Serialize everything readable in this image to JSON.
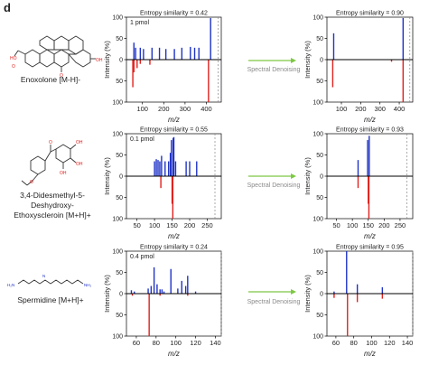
{
  "panel_letter": "d",
  "arrow_label": "Spectral Denoising",
  "y_axis_label": "Intensity (%)",
  "x_axis_label": "m/z",
  "colors": {
    "query": "#1f33c7",
    "reference": "#e0221e",
    "arrow": "#7dc843",
    "axis": "#000000",
    "zero": "#000000"
  },
  "rows": [
    {
      "compound": "Enoxolone [M-H]-",
      "structure_icon": "enoxolone-structure-icon",
      "amount": "1 pmol"
    },
    {
      "compound": "3,4-Didesmethyl-5-Deshydroxy-Ethoxyscleroin [M+H]+",
      "compound_lines": [
        "3,4-Didesmethyl-5-",
        "Deshydroxy-",
        "Ethoxyscleroin [M+H]+"
      ],
      "structure_icon": "didesmethyl-structure-icon",
      "amount": "0.1 pmol"
    },
    {
      "compound": "Spermidine [M+H]+",
      "structure_icon": "spermidine-structure-icon",
      "amount": "0.4 pmol"
    }
  ],
  "chart_data": [
    {
      "type": "bar",
      "id": "enoxolone-raw",
      "title": "Entropy similarity = 0.42",
      "annotation": "1 pmol",
      "xlabel": "m/z",
      "ylabel": "Intensity (%)",
      "xlim": [
        25,
        470
      ],
      "xticks": [
        100,
        200,
        300,
        400
      ],
      "ylim_top": [
        0,
        100
      ],
      "ylim_bottom": [
        0,
        100
      ],
      "yticks": [
        0,
        50,
        100
      ],
      "precursor_mz": 455,
      "series": [
        {
          "name": "query",
          "direction": "up",
          "points": [
            [
              60,
              40
            ],
            [
              68,
              28
            ],
            [
              90,
              28
            ],
            [
              105,
              25
            ],
            [
              145,
              28
            ],
            [
              180,
              28
            ],
            [
              210,
              25
            ],
            [
              250,
              25
            ],
            [
              285,
              28
            ],
            [
              325,
              30
            ],
            [
              345,
              28
            ],
            [
              365,
              28
            ],
            [
              420,
              98
            ]
          ]
        },
        {
          "name": "reference",
          "direction": "down",
          "points": [
            [
              55,
              65
            ],
            [
              60,
              30
            ],
            [
              75,
              20
            ],
            [
              90,
              10
            ],
            [
              135,
              12
            ],
            [
              410,
              100
            ]
          ]
        }
      ]
    },
    {
      "type": "bar",
      "id": "enoxolone-denoised",
      "title": "Entropy similarity = 0.90",
      "xlabel": "m/z",
      "ylabel": "Intensity (%)",
      "xlim": [
        25,
        470
      ],
      "xticks": [
        100,
        200,
        300,
        400
      ],
      "ylim_top": [
        0,
        100
      ],
      "ylim_bottom": [
        0,
        100
      ],
      "yticks": [
        0,
        50,
        100
      ],
      "precursor_mz": 455,
      "series": [
        {
          "name": "query",
          "direction": "up",
          "points": [
            [
              60,
              62
            ],
            [
              420,
              98
            ]
          ]
        },
        {
          "name": "reference",
          "direction": "down",
          "points": [
            [
              55,
              65
            ],
            [
              360,
              5
            ],
            [
              420,
              100
            ]
          ]
        }
      ]
    },
    {
      "type": "bar",
      "id": "didesmethyl-raw",
      "title": "Entropy similarity = 0.55",
      "annotation": "0.1 pmol",
      "xlabel": "m/z",
      "ylabel": "Intensity (%)",
      "xlim": [
        20,
        290
      ],
      "xticks": [
        50,
        100,
        150,
        200,
        250
      ],
      "ylim_top": [
        0,
        100
      ],
      "ylim_bottom": [
        0,
        100
      ],
      "yticks": [
        0,
        50,
        100
      ],
      "precursor_mz": 272,
      "series": [
        {
          "name": "query",
          "direction": "up",
          "points": [
            [
              100,
              35
            ],
            [
              105,
              40
            ],
            [
              110,
              38
            ],
            [
              115,
              35
            ],
            [
              120,
              48
            ],
            [
              130,
              35
            ],
            [
              140,
              35
            ],
            [
              145,
              55
            ],
            [
              148,
              85
            ],
            [
              153,
              90
            ],
            [
              155,
              92
            ],
            [
              160,
              35
            ],
            [
              190,
              35
            ],
            [
              200,
              35
            ],
            [
              220,
              35
            ]
          ]
        },
        {
          "name": "reference",
          "direction": "down",
          "points": [
            [
              118,
              28
            ],
            [
              150,
              65
            ],
            [
              152,
              100
            ]
          ]
        }
      ]
    },
    {
      "type": "bar",
      "id": "didesmethyl-denoised",
      "title": "Entropy similarity = 0.93",
      "xlabel": "m/z",
      "ylabel": "Intensity (%)",
      "xlim": [
        20,
        290
      ],
      "xticks": [
        50,
        100,
        150,
        200,
        250
      ],
      "ylim_top": [
        0,
        100
      ],
      "ylim_bottom": [
        0,
        100
      ],
      "yticks": [
        0,
        50,
        100
      ],
      "precursor_mz": 272,
      "series": [
        {
          "name": "query",
          "direction": "up",
          "points": [
            [
              118,
              38
            ],
            [
              148,
              85
            ],
            [
              153,
              95
            ]
          ]
        },
        {
          "name": "reference",
          "direction": "down",
          "points": [
            [
              118,
              28
            ],
            [
              150,
              65
            ],
            [
              152,
              100
            ]
          ]
        }
      ]
    },
    {
      "type": "bar",
      "id": "spermidine-raw",
      "title": "Entropy similarity = 0.24",
      "annotation": "0.4 pmol",
      "xlabel": "m/z",
      "ylabel": "Intensity (%)",
      "xlim": [
        50,
        146
      ],
      "xticks": [
        60,
        80,
        100,
        120,
        140
      ],
      "ylim_top": [
        0,
        100
      ],
      "ylim_bottom": [
        0,
        100
      ],
      "yticks": [
        0,
        50,
        100
      ],
      "precursor_mz": 146,
      "series": [
        {
          "name": "query",
          "direction": "up",
          "points": [
            [
              55,
              8
            ],
            [
              58,
              5
            ],
            [
              72,
              12
            ],
            [
              75,
              18
            ],
            [
              78,
              62
            ],
            [
              81,
              22
            ],
            [
              84,
              10
            ],
            [
              86,
              10
            ],
            [
              88,
              5
            ],
            [
              95,
              58
            ],
            [
              102,
              12
            ],
            [
              106,
              30
            ],
            [
              110,
              18
            ],
            [
              112,
              42
            ],
            [
              120,
              5
            ]
          ]
        },
        {
          "name": "reference",
          "direction": "down",
          "points": [
            [
              56,
              5
            ],
            [
              73,
              100
            ],
            [
              84,
              5
            ],
            [
              112,
              5
            ]
          ]
        }
      ]
    },
    {
      "type": "bar",
      "id": "spermidine-denoised",
      "title": "Entropy similarity = 0.95",
      "xlabel": "m/z",
      "ylabel": "Intensity (%)",
      "xlim": [
        50,
        146
      ],
      "xticks": [
        60,
        80,
        100,
        120,
        140
      ],
      "ylim_top": [
        0,
        100
      ],
      "ylim_bottom": [
        0,
        100
      ],
      "yticks": [
        0,
        50,
        100
      ],
      "precursor_mz": 146,
      "series": [
        {
          "name": "query",
          "direction": "up",
          "points": [
            [
              58,
              5
            ],
            [
              72,
              100
            ],
            [
              84,
              22
            ],
            [
              112,
              15
            ]
          ]
        },
        {
          "name": "reference",
          "direction": "down",
          "points": [
            [
              58,
              10
            ],
            [
              73,
              100
            ],
            [
              84,
              20
            ],
            [
              112,
              12
            ]
          ]
        }
      ]
    }
  ]
}
